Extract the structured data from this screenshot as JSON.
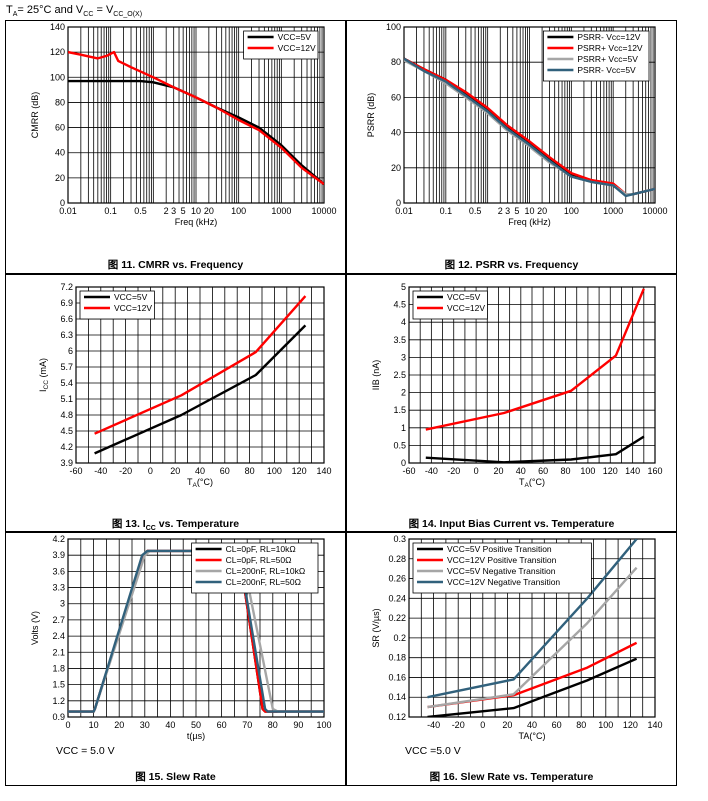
{
  "header": {
    "ta_prefix": "T",
    "ta_sub": "A",
    "ta_text": "= 25°C and V",
    "vcc_sub": "CC",
    "eq_text": " = V",
    "vcco_sub": "CC_O(X)"
  },
  "notes": {
    "fig15_vcc": "VCC = 5.0 V",
    "fig16_vcc": "VCC =5.0 V"
  },
  "chart_data": [
    {
      "id": "fig11",
      "type": "line",
      "caption": "图 11. CMRR vs. Frequency",
      "xlabel": "Freq (kHz)",
      "ylabel": "CMRR (dB)",
      "xscale": "log",
      "xlim": [
        0.01,
        10000
      ],
      "ylim": [
        0,
        140
      ],
      "xticks": [
        {
          "v": 0.01,
          "l": "0.01"
        },
        {
          "v": 0.1,
          "l": "0.1"
        },
        {
          "v": 0.5,
          "l": "0.5"
        },
        {
          "v": 2,
          "l": "2"
        },
        {
          "v": 3,
          "l": "3"
        },
        {
          "v": 5,
          "l": "5"
        },
        {
          "v": 10,
          "l": "10"
        },
        {
          "v": 20,
          "l": "20"
        },
        {
          "v": 100,
          "l": "100"
        },
        {
          "v": 1000,
          "l": "1000"
        },
        {
          "v": 10000,
          "l": "10000"
        }
      ],
      "yticks": [
        0,
        20,
        40,
        60,
        80,
        100,
        120,
        140
      ],
      "legend": "top-right",
      "series": [
        {
          "name": "VCC=5V",
          "color": "#000000",
          "x": [
            0.01,
            0.02,
            0.05,
            0.1,
            0.5,
            1,
            3,
            10,
            30,
            100,
            300,
            1000,
            3000,
            10000
          ],
          "y": [
            97,
            97,
            97,
            97,
            97,
            96,
            92,
            84,
            76,
            68,
            60,
            46,
            30,
            15
          ]
        },
        {
          "name": "VCC=12V",
          "color": "#ff0000",
          "x": [
            0.01,
            0.02,
            0.05,
            0.08,
            0.12,
            0.15,
            0.3,
            1,
            3,
            10,
            30,
            100,
            300,
            1000,
            3000,
            10000
          ],
          "y": [
            120,
            118,
            115,
            117,
            120,
            113,
            108,
            100,
            92,
            84,
            76,
            66,
            58,
            44,
            28,
            15
          ]
        }
      ]
    },
    {
      "id": "fig12",
      "type": "line",
      "caption": "图 12. PSRR vs. Frequency",
      "xlabel": "Freq (kHz)",
      "ylabel": "PSRR (dB)",
      "xscale": "log",
      "xlim": [
        0.01,
        10000
      ],
      "ylim": [
        0,
        100
      ],
      "xticks": [
        {
          "v": 0.01,
          "l": "0.01"
        },
        {
          "v": 0.1,
          "l": "0.1"
        },
        {
          "v": 0.5,
          "l": "0.5"
        },
        {
          "v": 2,
          "l": "2"
        },
        {
          "v": 3,
          "l": "3"
        },
        {
          "v": 5,
          "l": "5"
        },
        {
          "v": 10,
          "l": "10"
        },
        {
          "v": 20,
          "l": "20"
        },
        {
          "v": 100,
          "l": "100"
        },
        {
          "v": 1000,
          "l": "1000"
        },
        {
          "v": 10000,
          "l": "10000"
        }
      ],
      "yticks": [
        0,
        20,
        40,
        60,
        80,
        100
      ],
      "legend": "top-right",
      "series": [
        {
          "name": "PSRR- Vcc=12V",
          "color": "#000000",
          "x": [
            0.01,
            0.03,
            0.1,
            0.3,
            1,
            3,
            10,
            30,
            100,
            300,
            1000,
            2000,
            3000,
            10000
          ],
          "y": [
            82,
            76,
            70,
            62,
            53,
            43,
            34,
            25,
            16,
            13,
            10,
            5,
            5,
            8
          ]
        },
        {
          "name": "PSRR+ Vcc=12V",
          "color": "#ff0000",
          "x": [
            0.01,
            0.03,
            0.1,
            0.3,
            1,
            3,
            10,
            30,
            100,
            300,
            1000,
            2000,
            3000,
            10000
          ],
          "y": [
            82,
            76,
            70,
            63,
            54,
            44,
            35,
            26,
            17,
            13,
            11,
            5,
            5,
            8
          ]
        },
        {
          "name": "PSRR+ Vcc=5V",
          "color": "#a6a6a6",
          "x": [
            0.01,
            0.03,
            0.1,
            0.3,
            1,
            3,
            10,
            30,
            100,
            300,
            1000,
            2000,
            3000,
            10000
          ],
          "y": [
            81,
            75,
            68,
            60,
            51,
            41,
            32,
            23,
            15,
            12,
            10,
            5,
            5,
            8
          ]
        },
        {
          "name": "PSRR- Vcc=5V",
          "color": "#31617c",
          "x": [
            0.01,
            0.03,
            0.1,
            0.3,
            1,
            3,
            10,
            30,
            100,
            300,
            1000,
            2000,
            3000,
            10000
          ],
          "y": [
            82,
            75,
            69,
            61,
            52,
            42,
            33,
            24,
            15,
            12,
            10,
            4,
            5,
            8
          ]
        }
      ]
    },
    {
      "id": "fig13",
      "type": "line",
      "caption": "图 13. I",
      "caption_sub": "CC",
      "caption_rest": " vs. Temperature",
      "xlabel": "T",
      "xlabel_sub": "A",
      "xlabel_rest": "(°C)",
      "ylabel": "I",
      "ylabel_sub": "CC",
      "ylabel_rest": " (mA)",
      "xlim": [
        -60,
        140
      ],
      "ylim": [
        3.9,
        7.2
      ],
      "xticks": [
        {
          "v": -60,
          "l": "-60"
        },
        {
          "v": -40,
          "l": "-40"
        },
        {
          "v": -20,
          "l": "-20"
        },
        {
          "v": 0,
          "l": "0"
        },
        {
          "v": 20,
          "l": "20"
        },
        {
          "v": 40,
          "l": "40"
        },
        {
          "v": 60,
          "l": "60"
        },
        {
          "v": 80,
          "l": "80"
        },
        {
          "v": 100,
          "l": "100"
        },
        {
          "v": 120,
          "l": "120"
        },
        {
          "v": 140,
          "l": "140"
        }
      ],
      "yticks": [
        3.9,
        4.2,
        4.5,
        4.8,
        5.1,
        5.4,
        5.7,
        6,
        6.3,
        6.6,
        6.9,
        7.2
      ],
      "xgrid": [
        -60,
        -50,
        -40,
        -30,
        -20,
        -10,
        0,
        10,
        20,
        30,
        40,
        50,
        60,
        70,
        80,
        90,
        100,
        110,
        120,
        130,
        140
      ],
      "legend": "top-left",
      "series": [
        {
          "name": "VCC=5V",
          "color": "#000000",
          "x": [
            -45,
            25,
            85,
            125
          ],
          "y": [
            4.08,
            4.8,
            5.55,
            6.48
          ]
        },
        {
          "name": "VCC=12V",
          "color": "#ff0000",
          "x": [
            -45,
            25,
            85,
            125
          ],
          "y": [
            4.45,
            5.17,
            5.98,
            7.03
          ]
        }
      ]
    },
    {
      "id": "fig14",
      "type": "line",
      "caption": "图 14. Input Bias Current vs. Temperature",
      "xlabel": "T",
      "xlabel_sub": "A",
      "xlabel_rest": "(°C)",
      "ylabel": "IIB (nA)",
      "xlim": [
        -60,
        160
      ],
      "ylim": [
        0,
        5
      ],
      "xticks": [
        {
          "v": -60,
          "l": "-60"
        },
        {
          "v": -40,
          "l": "-40"
        },
        {
          "v": -20,
          "l": "-20"
        },
        {
          "v": 0,
          "l": "0"
        },
        {
          "v": 20,
          "l": "20"
        },
        {
          "v": 40,
          "l": "40"
        },
        {
          "v": 60,
          "l": "60"
        },
        {
          "v": 80,
          "l": "80"
        },
        {
          "v": 100,
          "l": "100"
        },
        {
          "v": 120,
          "l": "120"
        },
        {
          "v": 140,
          "l": "140"
        },
        {
          "v": 160,
          "l": "160"
        }
      ],
      "yticks": [
        0,
        0.5,
        1,
        1.5,
        2,
        2.5,
        3,
        3.5,
        4,
        4.5,
        5
      ],
      "xgrid": [
        -60,
        -50,
        -40,
        -30,
        -20,
        -10,
        0,
        10,
        20,
        30,
        40,
        50,
        60,
        70,
        80,
        90,
        100,
        110,
        120,
        130,
        140,
        150,
        160
      ],
      "legend": "top-left",
      "series": [
        {
          "name": "VCC=5V",
          "color": "#000000",
          "x": [
            -45,
            25,
            85,
            125,
            150
          ],
          "y": [
            0.15,
            0.02,
            0.1,
            0.25,
            0.75
          ]
        },
        {
          "name": "VCC=12V",
          "color": "#ff0000",
          "x": [
            -45,
            25,
            85,
            125,
            150
          ],
          "y": [
            0.95,
            1.42,
            2.05,
            3.05,
            4.95
          ]
        }
      ]
    },
    {
      "id": "fig15",
      "type": "line",
      "caption": "图 15. Slew Rate",
      "xlabel": "t(µs)",
      "ylabel": "Volts (V)",
      "xlim": [
        0,
        100
      ],
      "ylim": [
        0.9,
        4.2
      ],
      "xticks": [
        {
          "v": 0,
          "l": "0"
        },
        {
          "v": 10,
          "l": "10"
        },
        {
          "v": 20,
          "l": "20"
        },
        {
          "v": 30,
          "l": "30"
        },
        {
          "v": 40,
          "l": "40"
        },
        {
          "v": 50,
          "l": "50"
        },
        {
          "v": 60,
          "l": "60"
        },
        {
          "v": 70,
          "l": "70"
        },
        {
          "v": 80,
          "l": "80"
        },
        {
          "v": 90,
          "l": "90"
        },
        {
          "v": 100,
          "l": "100"
        }
      ],
      "yticks": [
        0.9,
        1.2,
        1.5,
        1.8,
        2.1,
        2.4,
        2.7,
        3,
        3.3,
        3.6,
        3.9,
        4.2
      ],
      "xgrid": [
        0,
        5,
        10,
        15,
        20,
        25,
        30,
        35,
        40,
        45,
        50,
        55,
        60,
        65,
        70,
        75,
        80,
        85,
        90,
        95,
        100
      ],
      "legend": "top-right",
      "series": [
        {
          "name": "CL=0pF, RL=10kΩ",
          "color": "#000000",
          "x": [
            0,
            10,
            10.5,
            29.5,
            31,
            66,
            67,
            76,
            77,
            100
          ],
          "y": [
            1.0,
            1.0,
            1.05,
            3.9,
            3.98,
            3.98,
            3.9,
            1.05,
            1.0,
            1.0
          ]
        },
        {
          "name": "CL=0pF, RL=50Ω",
          "color": "#ff0000",
          "x": [
            0,
            10,
            10.5,
            29.5,
            31,
            66,
            67,
            76,
            77,
            100
          ],
          "y": [
            1.0,
            1.0,
            1.05,
            3.9,
            3.98,
            3.98,
            3.9,
            1.05,
            1.0,
            1.0
          ]
        },
        {
          "name": "CL=200nF, RL=10kΩ",
          "color": "#a6a6a6",
          "x": [
            0,
            10,
            10.5,
            30,
            32,
            67,
            68,
            80,
            82,
            100
          ],
          "y": [
            1.0,
            1.0,
            1.05,
            3.9,
            3.98,
            3.98,
            3.9,
            1.05,
            1.0,
            1.0
          ]
        },
        {
          "name": "CL=200nF, RL=50Ω",
          "color": "#31617c",
          "x": [
            0,
            10,
            10.5,
            29,
            31,
            66,
            67,
            77,
            78,
            100
          ],
          "y": [
            1.0,
            1.0,
            1.05,
            3.9,
            3.98,
            3.98,
            3.9,
            1.05,
            1.0,
            1.0
          ]
        }
      ]
    },
    {
      "id": "fig16",
      "type": "line",
      "caption": "图 16. Slew Rate vs. Temperature",
      "xlabel": "TA(°C)",
      "ylabel": "SR (V/µs)",
      "xlim": [
        -60,
        140
      ],
      "ylim": [
        0.12,
        0.3
      ],
      "xticks": [
        {
          "v": -40,
          "l": "-40"
        },
        {
          "v": -20,
          "l": "-20"
        },
        {
          "v": 0,
          "l": "0"
        },
        {
          "v": 20,
          "l": "20"
        },
        {
          "v": 40,
          "l": "40"
        },
        {
          "v": 60,
          "l": "60"
        },
        {
          "v": 80,
          "l": "80"
        },
        {
          "v": 100,
          "l": "100"
        },
        {
          "v": 120,
          "l": "120"
        },
        {
          "v": 140,
          "l": "140"
        }
      ],
      "yticks": [
        0.12,
        0.14,
        0.16,
        0.18,
        0.2,
        0.22,
        0.24,
        0.26,
        0.28,
        0.3
      ],
      "ytick_labels": [
        "0.12",
        "0.14",
        "0.16",
        "0.18",
        "0.2",
        "0.22",
        "0.24",
        "0.26",
        "0.28",
        "0.3"
      ],
      "xgrid": [
        -60,
        -50,
        -40,
        -30,
        -20,
        -10,
        0,
        10,
        20,
        30,
        40,
        50,
        60,
        70,
        80,
        90,
        100,
        110,
        120,
        130,
        140
      ],
      "legend": "top-left",
      "series": [
        {
          "name": "VCC=5V Positive Transition",
          "color": "#000000",
          "x": [
            -45,
            25,
            85,
            125
          ],
          "y": [
            0.12,
            0.129,
            0.157,
            0.179
          ]
        },
        {
          "name": "VCC=12V Positive Transition",
          "color": "#ff0000",
          "x": [
            -45,
            25,
            85,
            125
          ],
          "y": [
            0.13,
            0.142,
            0.17,
            0.195
          ]
        },
        {
          "name": "VCC=5V Negative Transition",
          "color": "#a6a6a6",
          "x": [
            -45,
            25,
            85,
            125
          ],
          "y": [
            0.13,
            0.143,
            0.215,
            0.271
          ]
        },
        {
          "name": "VCC=12V Negative Transition",
          "color": "#31617c",
          "x": [
            -45,
            25,
            85,
            125
          ],
          "y": [
            0.14,
            0.158,
            0.24,
            0.3
          ]
        }
      ]
    }
  ]
}
